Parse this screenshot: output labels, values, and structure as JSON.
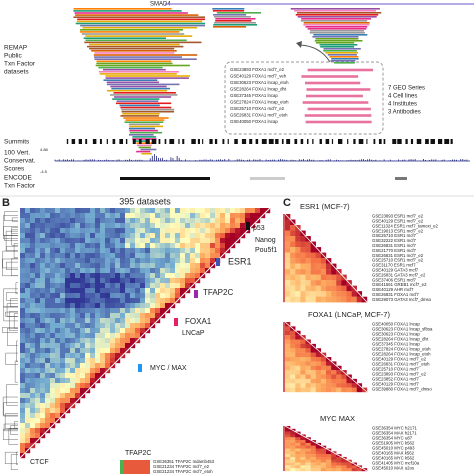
{
  "panel_a": {
    "gene": "SMAD4",
    "remap_label": [
      "REMAP",
      "Public",
      "Txn Factor",
      "datasets"
    ],
    "inset_labels": [
      "GSE23893 FOXA1 mcf7_e2",
      "GSE40129 FOXA1 mcf7_veh",
      "GSE30623 FOXA1 lncap_etoh",
      "GSE28264 FOXA1 lncap_dht",
      "GSE37345 FOXA1 lncap",
      "GSE27824 FOXA1 lncap_etoh",
      "GSE25710 FOXA1 mcf7_e2",
      "GSE26831 FOXA1 mcf7_etoh",
      "GSE40050 FOXA1 lncap"
    ],
    "inset_stats": [
      "7 GEO Series",
      "4 Cell lines",
      "4 Institutes",
      "3 Antibodies"
    ],
    "summits_label": "Summits",
    "conservation_label": [
      "100 Vert.",
      "Conservat.",
      "Scores"
    ],
    "conservation_axis": [
      "4.88",
      "-4.5"
    ],
    "encode_label": [
      "ENCODE",
      "Txn Factor"
    ]
  },
  "panel_b": {
    "letter": "B",
    "title": "395 datasets",
    "annotations": [
      "p53",
      "Nanog",
      "Pou5f1",
      "ESR1",
      "TFAP2C",
      "FOXA1",
      "LNCaP",
      "MYC / MAX",
      "CTCF"
    ],
    "inset_title": "TFAP2C",
    "inset_labels": [
      "GSE36351 TFAP2C mdamb453",
      "GSE21234 TFAP2C mcf7_e2",
      "GSE21234 TFAP2C mcf7_etoh"
    ]
  },
  "panel_c": {
    "letter": "C",
    "sections": [
      {
        "title": "ESR1 (MCF-7)",
        "labels": [
          "GSE23893 ESR1 mcf7_e2",
          "GSE40129 ESR1 mcf7_e2",
          "GSE11324 ESR1 mcf7_tamoxi_e2",
          "GSE19013 ESR1 mcf7_e2",
          "GSE25710 ESR1 mcf7",
          "GSE32222 ESR1 mcf7",
          "GSE26831 ESR1 mcf7",
          "GSE21770 ESR1 mcf7",
          "GSE26831 ESR1 mcf7_e2",
          "GSE25710 ESR1 mcf7_e2",
          "GSE31170 ESR1 mcf7",
          "GSE40129 GATA3 mcf7",
          "GSE26831 GATA3 mcf7_e2",
          "GSE37406 ESR1 mcf7",
          "GSE41561 GREB1 mcf7_e2",
          "GSE40129 AHR mcf7",
          "GSE26831 FOXA1 mcf7",
          "GSE29073 GATA3 mcf7_dmso"
        ]
      },
      {
        "title": "FOXA1 (LNCaP, MCF-7)",
        "labels": [
          "GSE40050 FOXA1 lncap",
          "GSE30623 FOXA1 lncap_sfbsa",
          "GSE30623 FOXA1 lncap",
          "GSE28264 FOXA1 lncap_dht",
          "GSE37345 FOXA1 lncap",
          "GSE27824 FOXA1 lncap_etoh",
          "GSE28264 FOXA1 lncap_etoh",
          "GSE40129 FOXA1 mcf7_e2",
          "GSE26831 FOXA1 mcf7_etoh",
          "GSE25710 FOXA1 mcf7",
          "GSE23893 FOXA1 mcf7_e2",
          "GSE23852 FOXA1 mcf7",
          "GSE40129 FOXA1 mcf7",
          "GSE39880 FOXA1 mcf7_dmso"
        ]
      },
      {
        "title": "MYC MAX",
        "labels": [
          "GSE36354 MYC h2171",
          "GSE36354 MAX h2171",
          "GSE36354 MYC u87",
          "GSE51905 MYC k562",
          "GSE45010 MYC p493",
          "GSE40165 MAX k562",
          "GSE40165 MYC k562",
          "GSE41405 MYC mcf10a",
          "GSE45010 MAX u2os"
        ]
      }
    ]
  }
}
